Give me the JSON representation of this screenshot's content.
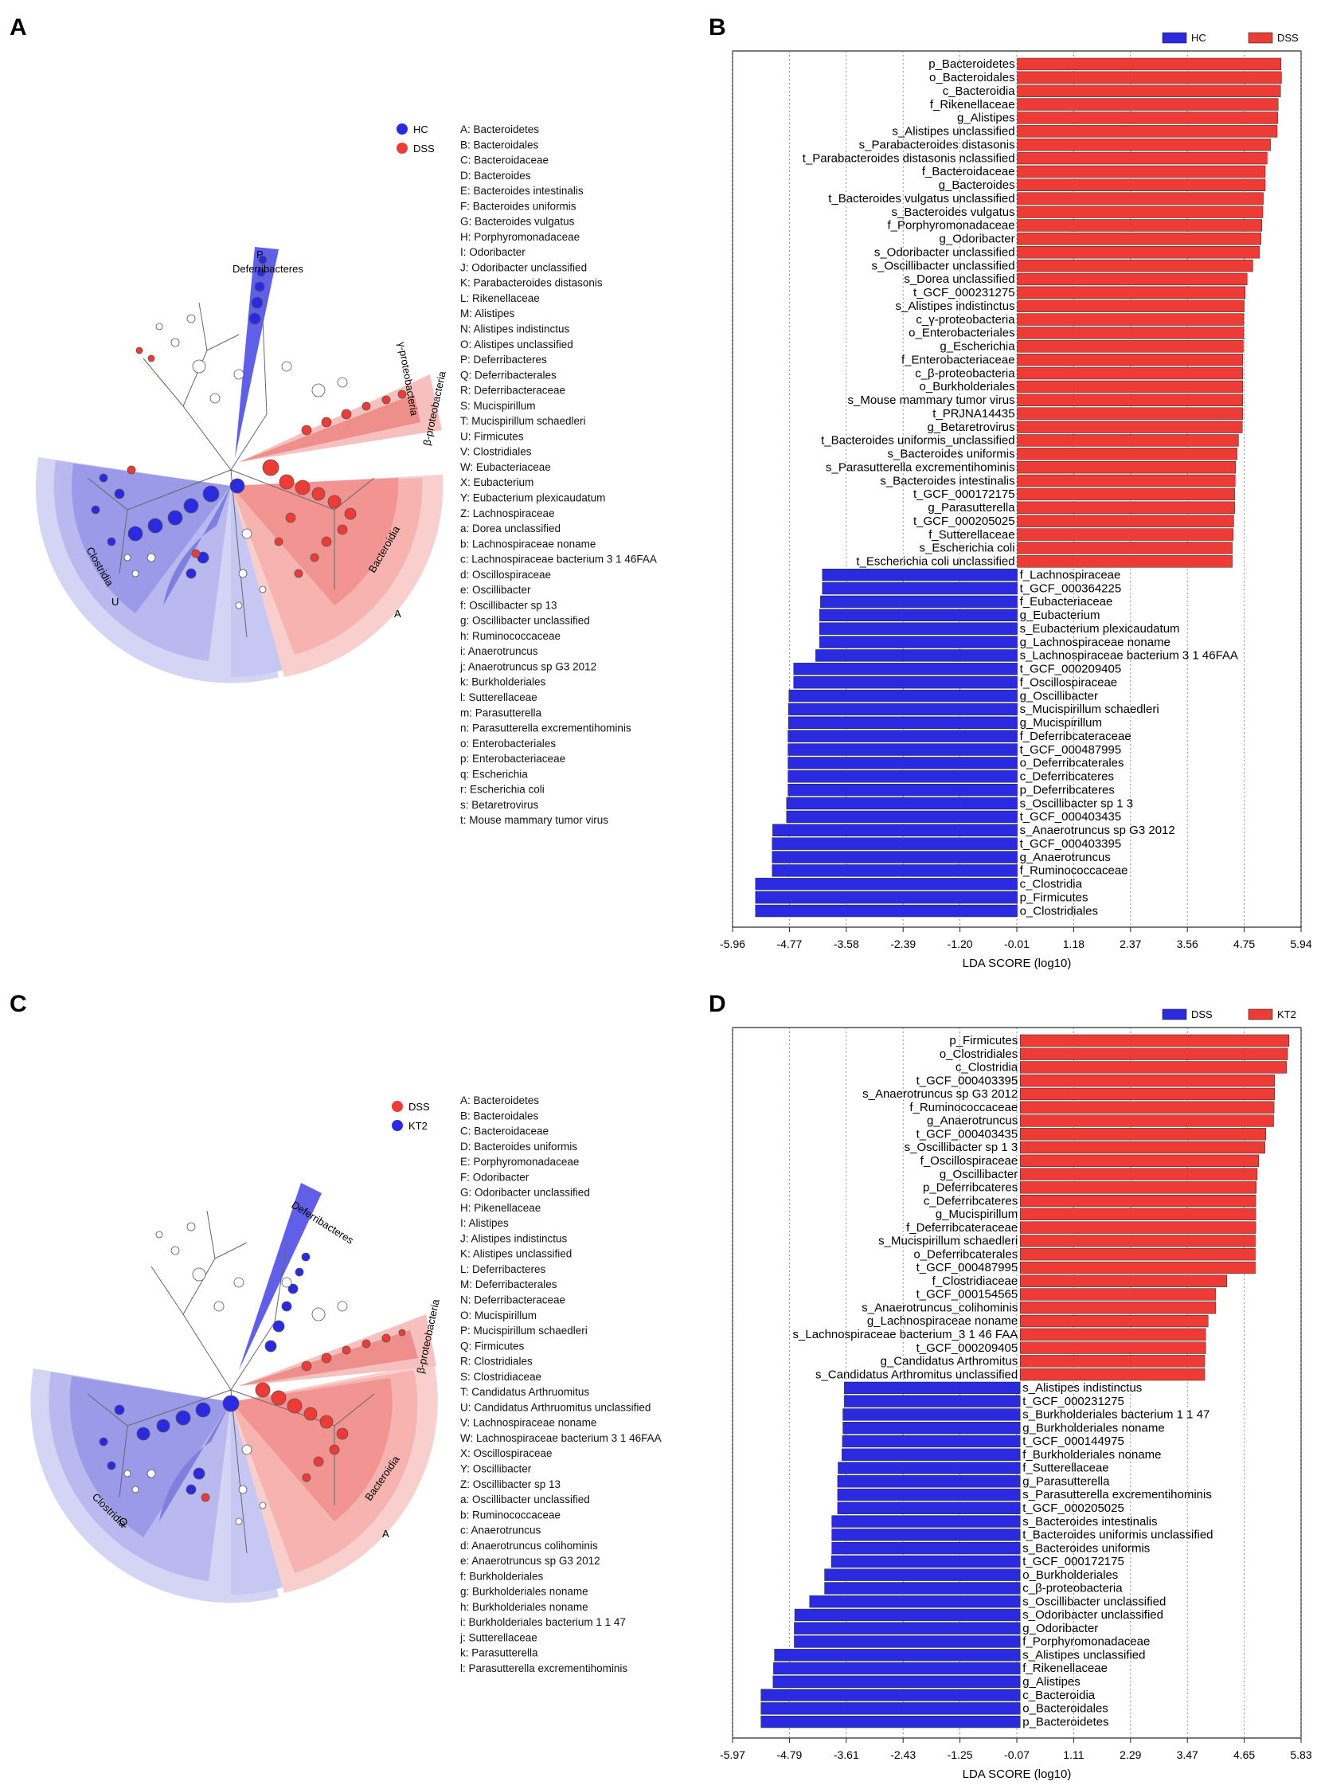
{
  "colors": {
    "red": "#ef3b36",
    "blue": "#2a2ae0",
    "red_light": "#f6b3b0",
    "blue_light": "#c7c7f3"
  },
  "panels": {
    "A": {
      "letter": "A",
      "legend": [
        {
          "name": "HC",
          "color": "#2a2ae0"
        },
        {
          "name": "DSS",
          "color": "#ef3b36"
        }
      ],
      "key": [
        "A: Bacteroidetes",
        "B: Bacteroidales",
        "C: Bacteroidaceae",
        "D: Bacteroides",
        "E: Bacteroides intestinalis",
        "F: Bacteroides uniformis",
        "G: Bacteroides vulgatus",
        "H: Porphyromonadaceae",
        "I: Odoribacter",
        "J: Odoribacter unclassified",
        "K: Parabacteroides distasonis",
        "L: Rikenellaceae",
        "M: Alistipes",
        "N: Alistipes indistinctus",
        "O: Alistipes unclassified",
        "P: Deferribacteres",
        "Q: Deferribacterales",
        "R: Deferribacteraceae",
        "S: Mucispirillum",
        "T: Mucispirillum schaedleri",
        "U: Firmicutes",
        "V: Clostridiales",
        "W: Eubacteriaceae",
        "X: Eubacterium",
        "Y: Eubacterium plexicaudatum",
        "Z: Lachnospiraceae",
        "a: Dorea unclassified",
        "b: Lachnospiraceae noname",
        "c: Lachnospiraceae bacterium 3 1 46FAA",
        "d: Oscillospiraceae",
        "e: Oscillibacter",
        "f: Oscillibacter sp 13",
        "g: Oscillibacter unclassified",
        "h: Ruminococcaceae",
        "i: Anaerotruncus",
        "j: Anaerotruncus sp G3 2012",
        "k: Burkholderiales",
        "l: Sutterellaceae",
        "m: Parasutterella",
        "n: Parasutterella excrementihominis",
        "o: Enterobacteriales",
        "p: Enterobacteriaceae",
        "q: Escherichia",
        "r: Escherichia coli",
        "s: Betaretrovirus",
        "t: Mouse mammary tumor virus"
      ],
      "labels": {
        "deferribacteres": "Deferribacteres",
        "clostridia": "Clostridia",
        "bacteroidia": "Bacteroidia",
        "beta": "β-proteobacteria",
        "gamma": "γ-proteobacteria",
        "U": "U",
        "A": "A"
      }
    },
    "B": {
      "letter": "B"
    },
    "C": {
      "letter": "C",
      "legend": [
        {
          "name": "DSS",
          "color": "#ef3b36"
        },
        {
          "name": "KT2",
          "color": "#2a2ae0"
        }
      ],
      "key": [
        "A: Bacteroidetes",
        "B: Bacteroidales",
        "C: Bacteroidaceae",
        "D: Bacteroides uniformis",
        "E: Porphyromonadaceae",
        "F: Odoribacter",
        "G: Odoribacter unclassified",
        "H: Pikenellaceae",
        "I: Alistipes",
        "J: Alistipes indistinctus",
        "K: Alistipes unclassified",
        "L: Deferribacteres",
        "M: Deferribacterales",
        "N: Deferribacteraceae",
        "O: Mucispirillum",
        "P: Mucispirillum schaedleri",
        "Q: Firmicutes",
        "R: Clostridiales",
        "S: Clostridiaceae",
        "T: Candidatus Arthruomitus",
        "U: Candidatus Arthruomitus unclassified",
        "V: Lachnospiraceae noname",
        "W: Lachnospiraceae bacterium 3 1 46FAA",
        "X: Oscillospiraceae",
        "Y: Oscillibacter",
        "Z: Oscillibacter sp 13",
        "a: Oscillibacter unclassified",
        "b: Ruminococcaceae",
        "c: Anaerotruncus",
        "d: Anaerotruncus colihominis",
        "e: Anaerotruncus sp G3 2012",
        "f: Burkholderiales",
        "g: Burkholderiales noname",
        "h: Burkholderiales noname",
        "i: Burkholderiales bacterium 1 1 47",
        "j: Sutterellaceae",
        "k: Parasutterella",
        "l: Parasutterella excrementihominis"
      ],
      "labels": {
        "deferribacteres": "Deferribacteres",
        "clostridia": "Clostridia",
        "bacteroidia": "Bacteroidia",
        "beta": "β-proteobacteria",
        "Q": "Q",
        "A": "A"
      }
    },
    "D": {
      "letter": "D"
    }
  },
  "chart_data": [
    {
      "id": "B",
      "type": "bar",
      "orientation": "horizontal",
      "xlabel": "LDA SCORE (log10)",
      "xlim": [
        -5.96,
        5.94
      ],
      "ticks": [
        -5.96,
        -4.77,
        -3.58,
        -2.39,
        -1.2,
        -0.01,
        1.18,
        2.37,
        3.56,
        4.75,
        5.94
      ],
      "tick_labels": [
        "-5.96",
        "-4.77",
        "-3.58",
        "-2.39",
        "-1.20",
        "-0.01",
        "1.18",
        "2.37",
        "3.56",
        "4.75",
        "5.94"
      ],
      "legend": [
        {
          "name": "HC",
          "color": "#2a2ae0"
        },
        {
          "name": "DSS",
          "color": "#ef3b36"
        }
      ],
      "series": [
        {
          "name": "DSS",
          "color": "#ef3b36",
          "categories": [
            "p_Bacteroidetes",
            "o_Bacteroidales",
            "c_Bacteroidia",
            "f_Rikenellaceae",
            "g_Alistipes",
            "s_Alistipes unclassified",
            "s_Parabacteroides distasonis",
            "t_Parabacteroides distasonis nclassified",
            "f_Bacteroidaceae",
            "g_Bacteroides",
            "t_Bacteroides vulgatus unclassified",
            "s_Bacteroides vulgatus",
            "f_Porphyromonadaceae",
            "g_Odoribacter",
            "s_Odoribacter unclassified",
            "s_Oscillibacter unclassified",
            "s_Dorea unclassified",
            "t_GCF_000231275",
            "s_Alistipes indistinctus",
            "c_γ-proteobacteria",
            "o_Enterobacteriales",
            "g_Escherichia",
            "f_Enterobacteriaceae",
            "c_β-proteobacteria",
            "o_Burkholderiales",
            "s_Mouse mammary tumor virus",
            "t_PRJNA14435",
            "g_Betaretrovirus",
            "t_Bacteroides uniformis_unclassified",
            "s_Bacteroides uniformis",
            "s_Parasutterella excrementihominis",
            "s_Bacteroides intestinalis",
            "t_GCF_000172175",
            "g_Parasutterella",
            "t_GCF_000205025",
            "f_Sutterellaceae",
            "s_Escherichia coli",
            "t_Escherichia coli unclassified"
          ],
          "values": [
            5.52,
            5.53,
            5.51,
            5.46,
            5.45,
            5.44,
            5.3,
            5.23,
            5.19,
            5.19,
            5.15,
            5.14,
            5.12,
            5.1,
            5.07,
            4.93,
            4.81,
            4.77,
            4.75,
            4.74,
            4.74,
            4.73,
            4.72,
            4.72,
            4.72,
            4.72,
            4.72,
            4.71,
            4.63,
            4.6,
            4.57,
            4.56,
            4.55,
            4.55,
            4.53,
            4.52,
            4.5,
            4.5
          ]
        },
        {
          "name": "HC",
          "color": "#2a2ae0",
          "categories": [
            "f_Lachnospiraceae",
            "t_GCF_000364225",
            "f_Eubacteriaceae",
            "g_Eubacterium",
            "s_Eubacterium plexicaudatum",
            "g_Lachnospiraceae noname",
            "s_Lachnospiraceae bacterium 3 1 46FAA",
            "t_GCF_000209405",
            "f_Oscillospiraceae",
            "g_Oscillibacter",
            "s_Mucispirillum schaedleri",
            "g_Mucispirillum",
            "f_Deferribcateraceae",
            "t_GCF_000487995",
            "o_Deferribcaterales",
            "c_Deferribcateres",
            "p_Deferribcateres",
            "s_Oscillibacter sp 1 3",
            "t_GCF_000403435",
            "s_Anaerotruncus sp G3 2012",
            "t_GCF_000403395",
            "g_Anaerotruncus",
            "f_Ruminococcaceae",
            "c_Clostridia",
            "p_Firmicutes",
            "o_Clostridiales"
          ],
          "values": [
            -4.08,
            -4.08,
            -4.12,
            -4.14,
            -4.14,
            -4.14,
            -4.22,
            -4.68,
            -4.68,
            -4.78,
            -4.79,
            -4.79,
            -4.8,
            -4.8,
            -4.8,
            -4.8,
            -4.8,
            -4.83,
            -4.83,
            -5.12,
            -5.13,
            -5.13,
            -5.13,
            -5.48,
            -5.48,
            -5.48
          ]
        }
      ]
    },
    {
      "id": "D",
      "type": "bar",
      "orientation": "horizontal",
      "xlabel": "LDA SCORE (log10)",
      "xlim": [
        -5.97,
        5.83
      ],
      "ticks": [
        -5.97,
        -4.79,
        -3.61,
        -2.43,
        -1.25,
        -0.07,
        1.11,
        2.29,
        3.47,
        4.65,
        5.83
      ],
      "tick_labels": [
        "-5.97",
        "-4.79",
        "-3.61",
        "-2.43",
        "-1.25",
        "-0.07",
        "1.11",
        "2.29",
        "3.47",
        "4.65",
        "5.83"
      ],
      "legend": [
        {
          "name": "DSS",
          "color": "#2a2ae0"
        },
        {
          "name": "KT2",
          "color": "#ef3b36"
        }
      ],
      "series": [
        {
          "name": "KT2",
          "color": "#ef3b36",
          "categories": [
            "p_Firmicutes",
            "o_Clostridiales",
            "c_Clostridia",
            "t_GCF_000403395",
            "s_Anaerotruncus sp G3 2012",
            "f_Ruminococcaceae",
            "g_Anaerotruncus",
            "t_GCF_000403435",
            "s_Oscillibacter sp 1 3",
            "f_Oscillospiraceae",
            "g_Oscillibacter",
            "p_Deferribcateres",
            "c_Deferribcateres",
            "g_Mucispirillum",
            "f_Deferribcateraceae",
            "s_Mucispirillum schaedleri",
            "o_Deferribcaterales",
            "t_GCF_000487995",
            "f_Clostridiaceae",
            "t_GCF_000154565",
            "s_Anaerotruncus_colihominis",
            "g_Lachnospiraceae noname",
            "s_Lachnospiraceae bacterium_3 1 46 FAA",
            "t_GCF_000209405",
            "g_Candidatus Arthromitus",
            "s_Candidatus Arthromitus unclassified"
          ],
          "values": [
            5.58,
            5.55,
            5.53,
            5.28,
            5.28,
            5.27,
            5.26,
            5.1,
            5.08,
            4.95,
            4.92,
            4.9,
            4.89,
            4.89,
            4.89,
            4.88,
            4.88,
            4.88,
            4.29,
            4.06,
            4.06,
            3.9,
            3.85,
            3.85,
            3.83,
            3.83
          ]
        },
        {
          "name": "DSS",
          "color": "#2a2ae0",
          "categories": [
            "s_Alistipes indistinctus",
            "t_GCF_000231275",
            "s_Burkholderiales bacterium 1 1 47",
            "g_Burkholderiales noname",
            "t_GCF_000144975",
            "f_Burkholderiales noname",
            "f_Sutterellaceae",
            "g_Parasutterella",
            "s_Parasutterella excrementihominis",
            "t_GCF_000205025",
            "s_Bacteroides intestinalis",
            "t_Bacteroides uniformis unclassified",
            "s_Bacteroides uniformis",
            "t_GCF_000172175",
            "o_Burkholderiales",
            "c_β-proteobacteria",
            "s_Oscillibacter unclassified",
            "s_Odoribacter unclassified",
            "g_Odoribacter",
            "f_Porphyromonadaceae",
            "s_Alistipes unclassified",
            "f_Rikenellaceae",
            "g_Alistipes",
            "c_Bacteroidia",
            "o_Bacteroidales",
            "p_Bacteroidetes"
          ],
          "values": [
            -3.65,
            -3.65,
            -3.68,
            -3.68,
            -3.69,
            -3.7,
            -3.78,
            -3.79,
            -3.79,
            -3.79,
            -3.91,
            -3.91,
            -3.91,
            -3.92,
            -4.06,
            -4.06,
            -4.37,
            -4.68,
            -4.69,
            -4.69,
            -5.1,
            -5.12,
            -5.13,
            -5.38,
            -5.38,
            -5.38
          ]
        }
      ]
    }
  ]
}
